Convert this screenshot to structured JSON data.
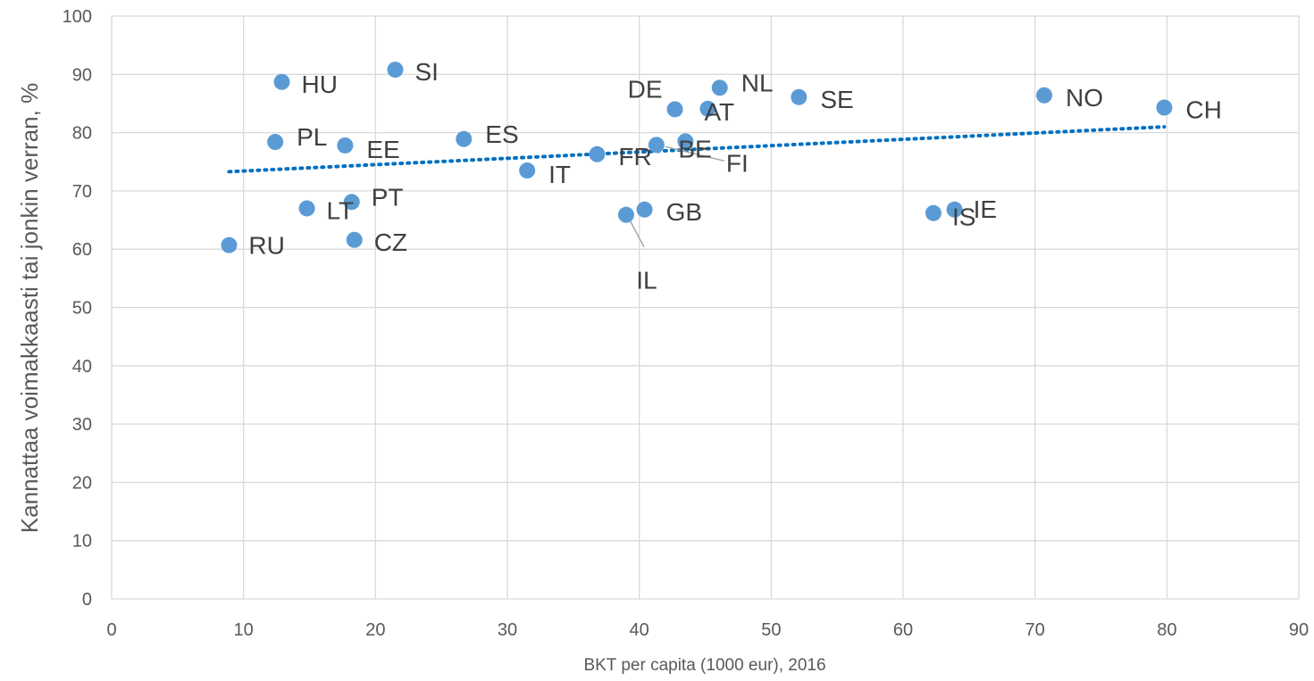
{
  "chart_data": {
    "type": "scatter",
    "title": "",
    "xlabel": "BKT per capita (1000 eur), 2016",
    "ylabel": "Kannattaa voimakkaasti tai jonkin verran, %",
    "xlim": [
      0,
      90
    ],
    "ylim": [
      0,
      100
    ],
    "x_ticks": [
      0,
      10,
      20,
      30,
      40,
      50,
      60,
      70,
      80,
      90
    ],
    "y_ticks": [
      0,
      10,
      20,
      30,
      40,
      50,
      60,
      70,
      80,
      90,
      100
    ],
    "grid": "on",
    "legend": "none",
    "points": [
      {
        "label": "RU",
        "x": 8.9,
        "y": 60.7
      },
      {
        "label": "PL",
        "x": 12.4,
        "y": 78.4
      },
      {
        "label": "HU",
        "x": 12.9,
        "y": 88.7
      },
      {
        "label": "LT",
        "x": 14.8,
        "y": 67.0
      },
      {
        "label": "EE",
        "x": 17.7,
        "y": 77.8
      },
      {
        "label": "PT",
        "x": 18.2,
        "y": 68.1
      },
      {
        "label": "CZ",
        "x": 18.4,
        "y": 61.6
      },
      {
        "label": "SI",
        "x": 21.5,
        "y": 90.8
      },
      {
        "label": "ES",
        "x": 26.7,
        "y": 78.9
      },
      {
        "label": "IT",
        "x": 31.5,
        "y": 73.5
      },
      {
        "label": "FR",
        "x": 36.8,
        "y": 76.3
      },
      {
        "label": "IL",
        "x": 39.0,
        "y": 65.9
      },
      {
        "label": "GB",
        "x": 40.4,
        "y": 66.8
      },
      {
        "label": "FI",
        "x": 41.3,
        "y": 77.9
      },
      {
        "label": "DE",
        "x": 42.7,
        "y": 84.0
      },
      {
        "label": "BE",
        "x": 43.5,
        "y": 78.5
      },
      {
        "label": "AT",
        "x": 45.2,
        "y": 84.1
      },
      {
        "label": "NL",
        "x": 46.1,
        "y": 87.7
      },
      {
        "label": "SE",
        "x": 52.1,
        "y": 86.1
      },
      {
        "label": "IS",
        "x": 62.3,
        "y": 66.2
      },
      {
        "label": "IE",
        "x": 63.9,
        "y": 66.8
      },
      {
        "label": "NO",
        "x": 70.7,
        "y": 86.4
      },
      {
        "label": "CH",
        "x": 79.8,
        "y": 84.3
      }
    ],
    "trendline": {
      "type": "linear",
      "x": [
        8.9,
        79.8
      ],
      "y": [
        73.3,
        81.0
      ]
    }
  }
}
